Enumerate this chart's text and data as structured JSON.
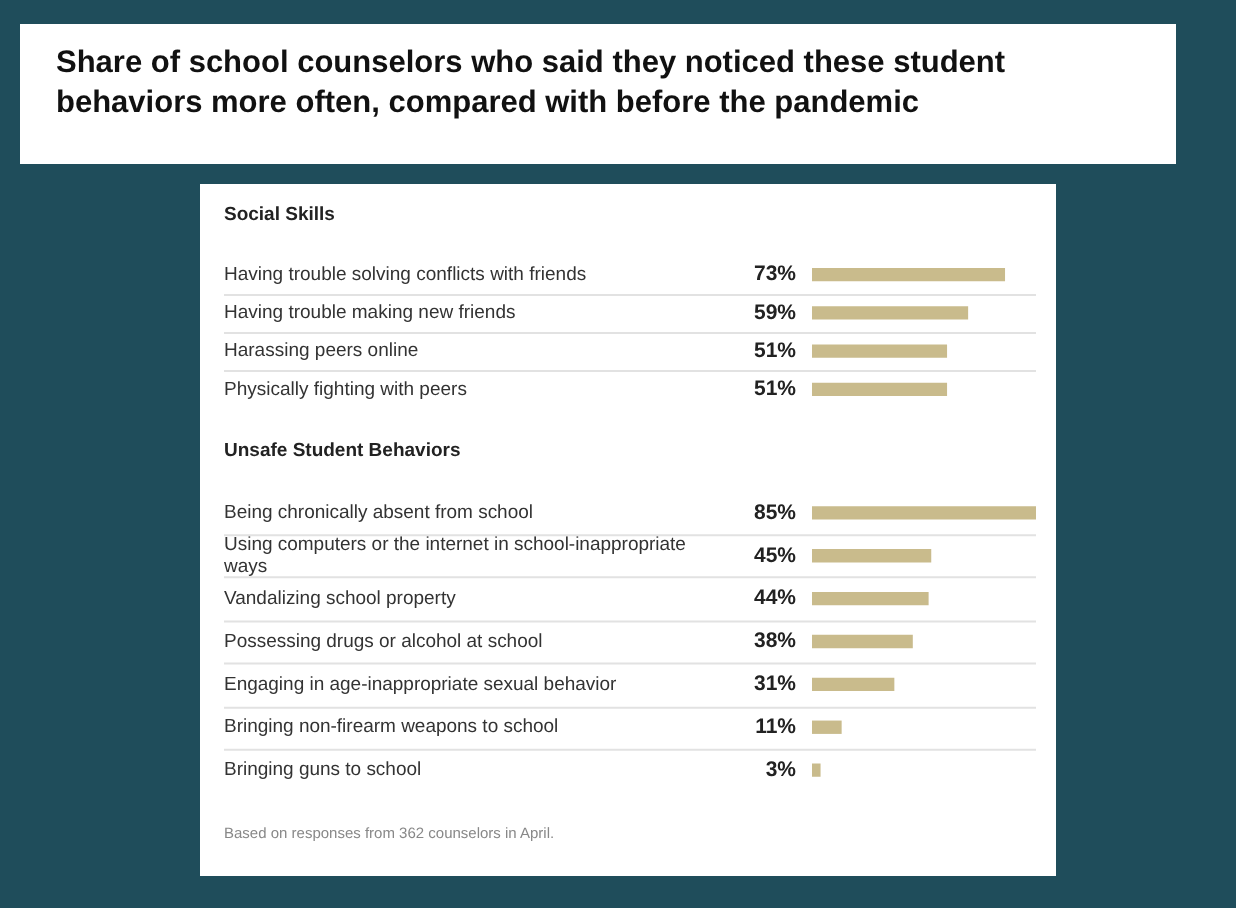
{
  "chart_data": [
    {
      "type": "bar",
      "orientation": "horizontal",
      "title": "Share of school counselors who said they noticed these student behaviors more often, compared with before the pandemic",
      "subtitle": "Social Skills",
      "categories": [
        "Having trouble solving conflicts with friends",
        "Having trouble making new friends",
        "Harassing peers online",
        "Physically fighting with peers"
      ],
      "values": [
        73,
        59,
        51,
        51
      ],
      "value_labels": [
        "73%",
        "59%",
        "51%",
        "51%"
      ],
      "color": "#c9bb8c",
      "grid": "y",
      "legend": false
    },
    {
      "type": "bar",
      "orientation": "horizontal",
      "title": "Unsafe Student Behaviors",
      "categories": [
        "Being chronically absent from school",
        "Using computers or the internet in school-inappropriate ways",
        "Vandalizing school property",
        "Possessing drugs or alcohol at school",
        "Engaging in age-inappropriate sexual behavior",
        "Bringing non-firearm weapons to school",
        "Bringing guns to school"
      ],
      "values": [
        85,
        45,
        44,
        38,
        31,
        11,
        3
      ],
      "value_labels": [
        "85%",
        "45%",
        "44%",
        "38%",
        "31%",
        "11%",
        "3%"
      ],
      "color": "#c9bb8c",
      "grid": "y",
      "legend": false,
      "annotations": [
        "Based on responses from 362 counselors in April."
      ]
    }
  ]
}
